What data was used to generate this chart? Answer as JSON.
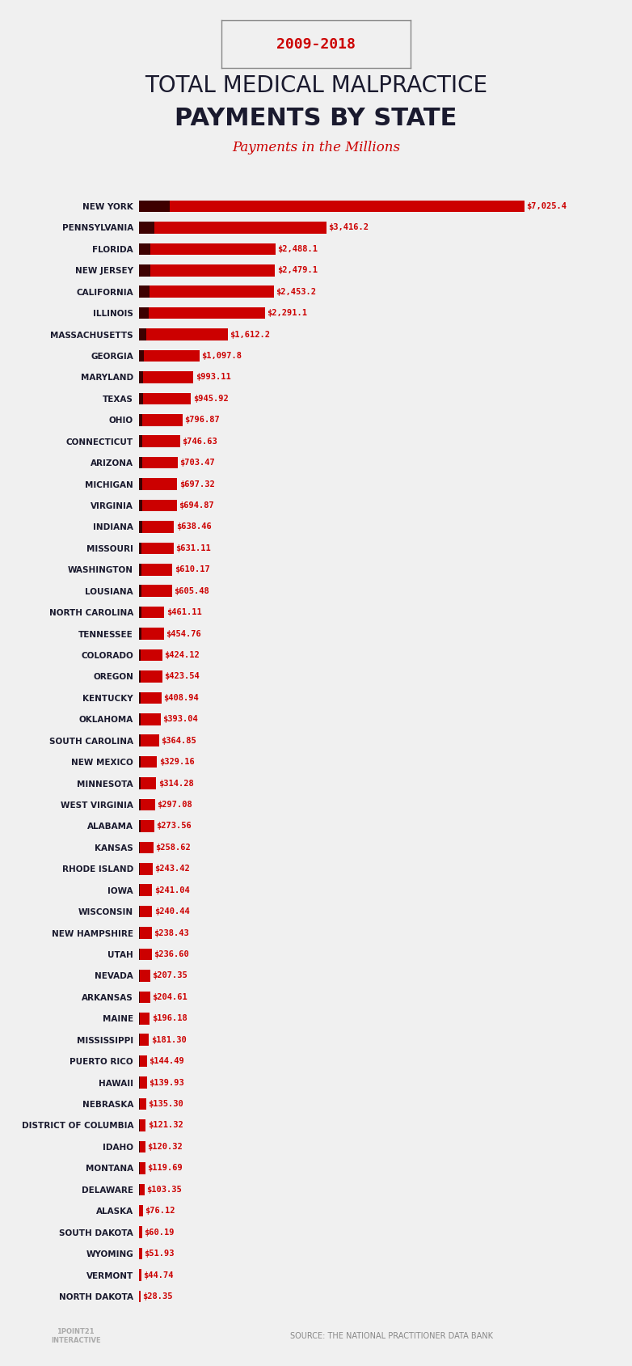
{
  "title_line1": "TOTAL MEDICAL MALPRACTICE",
  "title_line2": "PAYMENTS BY STATE",
  "subtitle": "Payments in the Millions",
  "date_label": "2009-2018",
  "source": "SOURCE: THE NATIONAL PRACTITIONER DATA BANK",
  "background_color": "#f0f0f0",
  "bar_color_left": "#3d0000",
  "bar_color_right": "#cc0000",
  "label_color": "#cc0000",
  "title_color": "#1a1a2e",
  "subtitle_color": "#cc0000",
  "states": [
    "NEW YORK",
    "PENNSYLVANIA",
    "FLORIDA",
    "NEW JERSEY",
    "CALIFORNIA",
    "ILLINOIS",
    "MASSACHUSETTS",
    "GEORGIA",
    "MARYLAND",
    "TEXAS",
    "OHIO",
    "CONNECTICUT",
    "ARIZONA",
    "MICHIGAN",
    "VIRGINIA",
    "INDIANA",
    "MISSOURI",
    "WASHINGTON",
    "LOUSIANA",
    "NORTH CAROLINA",
    "TENNESSEE",
    "COLORADO",
    "OREGON",
    "KENTUCKY",
    "OKLAHOMA",
    "SOUTH CAROLINA",
    "NEW MEXICO",
    "MINNESOTA",
    "WEST VIRGINIA",
    "ALABAMA",
    "KANSAS",
    "RHODE ISLAND",
    "IOWA",
    "WISCONSIN",
    "NEW HAMPSHIRE",
    "UTAH",
    "NEVADA",
    "ARKANSAS",
    "MAINE",
    "MISSISSIPPI",
    "PUERTO RICO",
    "HAWAII",
    "NEBRASKA",
    "DISTRICT OF COLUMBIA",
    "IDAHO",
    "MONTANA",
    "DELAWARE",
    "ALASKA",
    "SOUTH DAKOTA",
    "WYOMING",
    "VERMONT",
    "NORTH DAKOTA"
  ],
  "values": [
    7025.4,
    3416.2,
    2488.1,
    2479.1,
    2453.2,
    2291.1,
    1612.2,
    1097.8,
    993.11,
    945.92,
    796.87,
    746.63,
    703.47,
    697.32,
    694.87,
    638.46,
    631.11,
    610.17,
    605.48,
    461.11,
    454.76,
    424.12,
    423.54,
    408.94,
    393.04,
    364.85,
    329.16,
    314.28,
    297.08,
    273.56,
    258.62,
    243.42,
    241.04,
    240.44,
    238.43,
    236.6,
    207.35,
    204.61,
    196.18,
    181.3,
    144.49,
    139.93,
    135.3,
    121.32,
    120.32,
    119.69,
    103.35,
    76.12,
    60.19,
    51.93,
    44.74,
    28.35
  ],
  "value_labels": [
    "$7,025.4",
    "$3,416.2",
    "$2,488.1",
    "$2,479.1",
    "$2,453.2",
    "$2,291.1",
    "$1,612.2",
    "$1,097.8",
    "$993.11",
    "$945.92",
    "$796.87",
    "$746.63",
    "$703.47",
    "$697.32",
    "$694.87",
    "$638.46",
    "$631.11",
    "$610.17",
    "$605.48",
    "$461.11",
    "$454.76",
    "$424.12",
    "$423.54",
    "$408.94",
    "$393.04",
    "$364.85",
    "$329.16",
    "$314.28",
    "$297.08",
    "$273.56",
    "$258.62",
    "$243.42",
    "$241.04",
    "$240.44",
    "$238.43",
    "$236.60",
    "$207.35",
    "$204.61",
    "$196.18",
    "$181.30",
    "$144.49",
    "$139.93",
    "$135.30",
    "$121.32",
    "$120.32",
    "$119.69",
    "$103.35",
    "$76.12",
    "$60.19",
    "$51.93",
    "$44.74",
    "$28.35"
  ]
}
